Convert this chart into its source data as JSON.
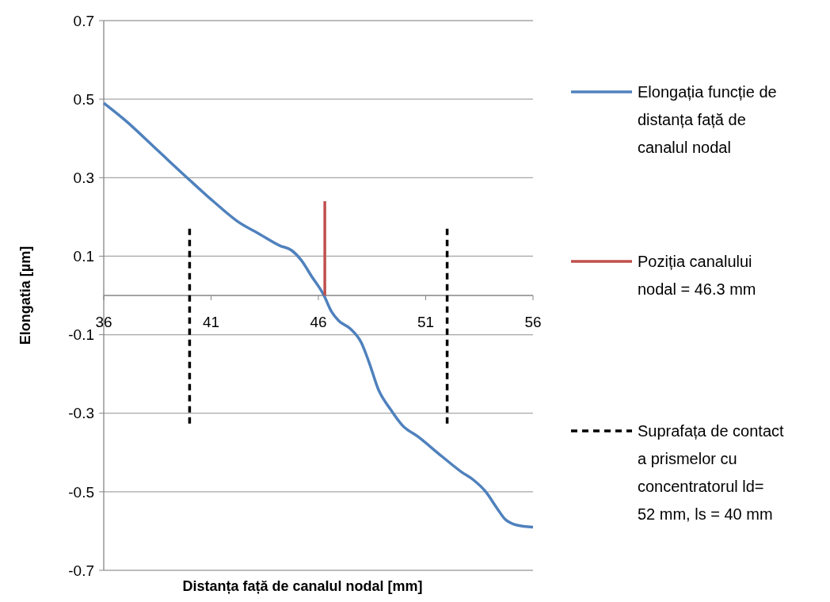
{
  "chart_data": {
    "type": "line",
    "xlabel": "Distanța față de canalul nodal [mm]",
    "ylabel": "Elongatia [µm]",
    "xlim": [
      36,
      56
    ],
    "xticks": [
      36,
      41,
      46,
      51,
      56
    ],
    "ylim": [
      -0.7,
      0.7
    ],
    "yticks": [
      -0.7,
      -0.5,
      -0.3,
      -0.1,
      0.1,
      0.3,
      0.5,
      0.7
    ],
    "grid": "y",
    "legend": "right",
    "marker": "none",
    "series": [
      {
        "name": "Elongația funcție de distanța față de canalul nodal",
        "color": "#4f81bd",
        "line_style": "solid",
        "x": [
          36,
          37,
          38.5,
          40,
          41.1,
          42.2,
          43.3,
          44.2,
          44.75,
          45.2,
          45.67,
          46.26,
          46.6,
          46.96,
          47.5,
          48,
          48.36,
          48.8,
          49.36,
          49.9,
          50.65,
          51.76,
          52.68,
          53.23,
          53.8,
          54.3,
          54.7,
          55.26,
          56
        ],
        "values": [
          0.49,
          0.446,
          0.37,
          0.294,
          0.24,
          0.19,
          0.155,
          0.127,
          0.115,
          0.09,
          0.05,
          0,
          -0.04,
          -0.065,
          -0.085,
          -0.12,
          -0.17,
          -0.24,
          -0.29,
          -0.33,
          -0.36,
          -0.41,
          -0.45,
          -0.47,
          -0.5,
          -0.54,
          -0.57,
          -0.585,
          -0.59
        ]
      },
      {
        "name": "Poziția canalului nodal = 46.3 mm",
        "color": "#c0504d",
        "line_style": "solid",
        "x": [
          46.3,
          46.3
        ],
        "values": [
          0,
          0.24
        ]
      },
      {
        "name": "Suprafața de contact a prismelor cu concentratorul ld= 52 mm, ls = 40 mm",
        "color": "#000000",
        "line_style": "dashed",
        "x": [
          40,
          40
        ],
        "values": [
          0.17,
          -0.33
        ]
      },
      {
        "color": "#000000",
        "line_style": "dashed",
        "x": [
          52,
          52
        ],
        "values": [
          0.17,
          -0.33
        ]
      }
    ]
  }
}
